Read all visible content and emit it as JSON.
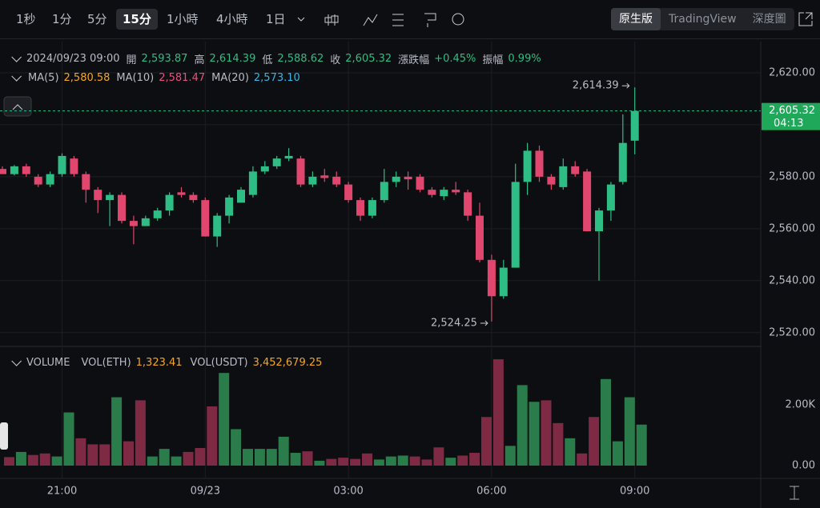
{
  "toolbar": {
    "intervals": [
      "1秒",
      "1分",
      "5分",
      "15分",
      "1小時",
      "4小時",
      "1日"
    ],
    "active_interval_index": 3,
    "views": [
      "原生版",
      "TradingView",
      "深度圖"
    ],
    "active_view_index": 0
  },
  "legend": {
    "date": "2024/09/23 09:00",
    "value_color": "#2ebd85",
    "items": [
      {
        "label": "開",
        "value": "2,593.87"
      },
      {
        "label": "高",
        "value": "2,614.39"
      },
      {
        "label": "低",
        "value": "2,588.62"
      },
      {
        "label": "收",
        "value": "2,605.32"
      },
      {
        "label": "漲跌幅",
        "value": "+0.45%"
      },
      {
        "label": "振幅",
        "value": "0.99%"
      }
    ]
  },
  "ma_legend": [
    {
      "label": "MA(5)",
      "value": "2,580.58",
      "color": "#f5a623"
    },
    {
      "label": "MA(10)",
      "value": "2,581.47",
      "color": "#e8507c"
    },
    {
      "label": "MA(20)",
      "value": "2,573.10",
      "color": "#35b6e6"
    }
  ],
  "volume_legend": {
    "title": "VOLUME",
    "items": [
      {
        "label": "VOL(ETH)",
        "value": "1,323.41",
        "color": "#f5a623"
      },
      {
        "label": "VOL(USDT)",
        "value": "3,452,679.25",
        "color": "#f5a623"
      }
    ]
  },
  "chart_data": [
    {
      "type": "candlestick",
      "up_color": "#2ebd85",
      "down_color": "#e0466e",
      "open": [
        2583,
        2581,
        2584,
        2580,
        2577,
        2581,
        2587,
        2581,
        2575,
        2571,
        2573,
        2563,
        2561,
        2564,
        2567,
        2574,
        2573,
        2571,
        2557,
        2565,
        2570,
        2573,
        2582,
        2584,
        2587,
        2587,
        2577,
        2580.5,
        2580,
        2577,
        2571,
        2565,
        2571,
        2578,
        2580,
        2580,
        2575,
        2572.5,
        2575,
        2574,
        2565,
        2548,
        2534,
        2545,
        2578,
        2590,
        2580,
        2576,
        2584,
        2582,
        2559,
        2567,
        2578,
        2593.87
      ],
      "high": [
        2584,
        2584.5,
        2585,
        2581,
        2582,
        2589,
        2588,
        2582,
        2576,
        2574,
        2574,
        2565,
        2565,
        2568,
        2574,
        2576,
        2574,
        2572,
        2566,
        2573,
        2576,
        2584,
        2586,
        2588,
        2591,
        2588,
        2582,
        2583,
        2582,
        2578,
        2572,
        2572,
        2583,
        2582,
        2582,
        2581,
        2576,
        2576,
        2578,
        2575,
        2570,
        2550,
        2548,
        2585,
        2593,
        2592,
        2581,
        2587,
        2586,
        2583,
        2568,
        2578,
        2604,
        2614.39
      ],
      "low": [
        2581,
        2580.5,
        2580,
        2576,
        2576,
        2580,
        2580,
        2570,
        2566,
        2561,
        2562,
        2554,
        2561,
        2563,
        2565,
        2572,
        2570,
        2557,
        2553,
        2562,
        2570,
        2572,
        2581,
        2583,
        2586,
        2576,
        2576,
        2578,
        2576,
        2570,
        2563,
        2564,
        2570,
        2576,
        2575,
        2574,
        2572,
        2571,
        2573,
        2563,
        2547,
        2524.25,
        2533,
        2545,
        2573,
        2578,
        2575,
        2575,
        2580,
        2559,
        2540,
        2563,
        2577,
        2588.62
      ],
      "close": [
        2581,
        2584,
        2581,
        2577,
        2581,
        2588,
        2581,
        2575,
        2571,
        2573,
        2563,
        2561,
        2564,
        2567,
        2573,
        2573,
        2571,
        2557,
        2565,
        2572,
        2575,
        2582,
        2584,
        2587,
        2588,
        2577,
        2580,
        2579.5,
        2577,
        2571,
        2565,
        2571,
        2578,
        2580,
        2579,
        2575,
        2573,
        2575,
        2574,
        2565,
        2548,
        2534,
        2545,
        2578,
        2590,
        2580,
        2577,
        2584,
        2581,
        2559,
        2567,
        2577,
        2593,
        2605.32
      ],
      "ylim": [
        2515,
        2632
      ],
      "yticks": [
        {
          "value": 2620,
          "label": "2,620.00"
        },
        {
          "value": 2600,
          "label": "2,600.00"
        },
        {
          "value": 2580,
          "label": "2,580.00"
        },
        {
          "value": 2560,
          "label": "2,560.00"
        },
        {
          "value": 2540,
          "label": "2,540.00"
        },
        {
          "value": 2520,
          "label": "2,520.00"
        }
      ],
      "grid": true,
      "last_price": {
        "value": 2605.32,
        "label": "2,605.32",
        "countdown": "04:13"
      },
      "high_label": "2,614.39",
      "low_label": "2,524.25"
    },
    {
      "type": "bar",
      "up_color": "#2a7d4a",
      "down_color": "#7e2a44",
      "categories": [
        null,
        null,
        null,
        null,
        null,
        "21:00",
        null,
        null,
        null,
        null,
        null,
        null,
        null,
        null,
        null,
        null,
        null,
        "09/23",
        null,
        null,
        null,
        null,
        null,
        null,
        null,
        null,
        null,
        null,
        null,
        "03:00",
        null,
        null,
        null,
        null,
        null,
        null,
        null,
        null,
        null,
        null,
        null,
        "06:00",
        null,
        null,
        null,
        null,
        null,
        null,
        null,
        null,
        null,
        null,
        null,
        "09:00"
      ],
      "values": [
        280,
        450,
        350,
        400,
        300,
        1750,
        900,
        700,
        700,
        2250,
        800,
        2150,
        300,
        550,
        300,
        450,
        580,
        1950,
        3050,
        1200,
        550,
        550,
        550,
        950,
        420,
        470,
        160,
        220,
        260,
        220,
        400,
        200,
        300,
        330,
        300,
        200,
        600,
        260,
        330,
        420,
        1600,
        3500,
        650,
        2650,
        2100,
        2150,
        1400,
        900,
        400,
        1600,
        2850,
        800,
        2250,
        1350
      ],
      "ylim": [
        0,
        3740
      ],
      "yticks": [
        {
          "value": 0,
          "label": "0.00"
        },
        {
          "value": 2000,
          "label": "2.00K"
        }
      ]
    }
  ]
}
